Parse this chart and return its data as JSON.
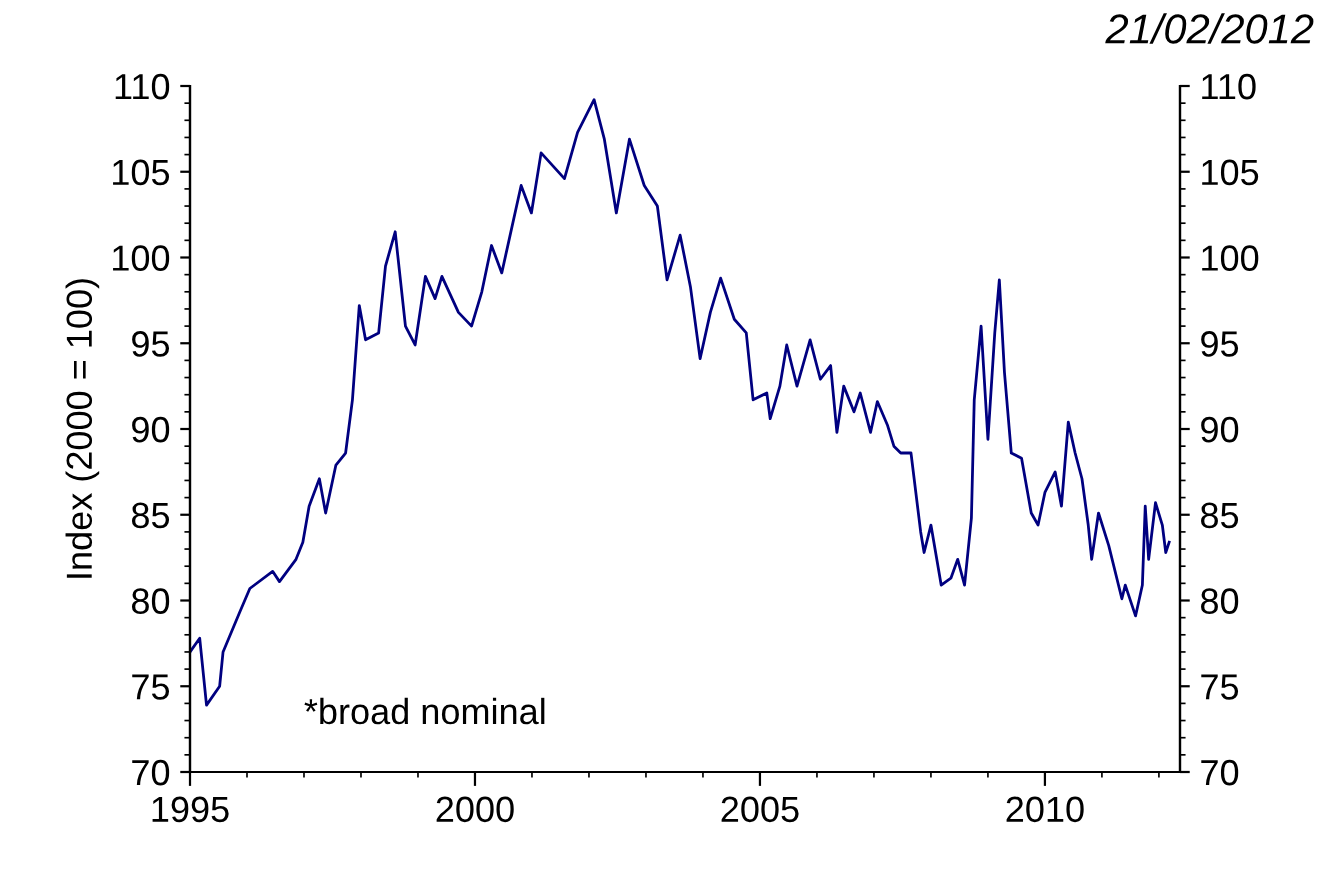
{
  "chart_data": {
    "type": "line",
    "subtitle": "21/02/2012",
    "ylabel": "Index (2000 = 100)",
    "annotations": [
      "*broad nominal"
    ],
    "xlim": [
      1995,
      2012.37
    ],
    "xticks": [
      1995,
      2000,
      2005,
      2010
    ],
    "ylim": [
      70,
      110
    ],
    "yticks": [
      70,
      75,
      80,
      85,
      90,
      95,
      100,
      105,
      110
    ],
    "y2lim": [
      70,
      110
    ],
    "y2ticks": [
      70,
      75,
      80,
      85,
      90,
      95,
      100,
      105,
      110
    ],
    "grid": false,
    "legend": false,
    "series": [
      {
        "color": "#000080",
        "x": [
          1995.0,
          1995.17,
          1995.29,
          1995.52,
          1995.58,
          1995.87,
          1996.05,
          1996.45,
          1996.57,
          1996.86,
          1996.98,
          1997.09,
          1997.27,
          1997.38,
          1997.56,
          1997.73,
          1997.85,
          1997.97,
          1998.08,
          1998.31,
          1998.43,
          1998.6,
          1998.78,
          1998.95,
          1999.13,
          1999.3,
          1999.42,
          1999.71,
          1999.94,
          2000.12,
          2000.29,
          2000.47,
          2000.81,
          2000.99,
          2001.16,
          2001.57,
          2001.8,
          2002.09,
          2002.27,
          2002.48,
          2002.71,
          2002.97,
          2003.2,
          2003.37,
          2003.6,
          2003.78,
          2003.95,
          2004.13,
          2004.31,
          2004.55,
          2004.76,
          2004.88,
          2005.12,
          2005.18,
          2005.35,
          2005.47,
          2005.65,
          2005.88,
          2006.06,
          2006.24,
          2006.35,
          2006.47,
          2006.65,
          2006.76,
          2006.94,
          2007.06,
          2007.24,
          2007.35,
          2007.47,
          2007.65,
          2007.82,
          2007.88,
          2008.0,
          2008.18,
          2008.35,
          2008.47,
          2008.59,
          2008.71,
          2008.76,
          2008.88,
          2009.0,
          2009.12,
          2009.2,
          2009.29,
          2009.41,
          2009.59,
          2009.76,
          2009.88,
          2010.0,
          2010.18,
          2010.29,
          2010.41,
          2010.53,
          2010.65,
          2010.76,
          2010.82,
          2010.94,
          2011.12,
          2011.35,
          2011.41,
          2011.59,
          2011.71,
          2011.76,
          2011.82,
          2011.94,
          2012.06,
          2012.12,
          2012.18
        ],
        "values": [
          77.0,
          77.8,
          73.9,
          75.0,
          77.0,
          79.3,
          80.7,
          81.7,
          81.1,
          82.4,
          83.4,
          85.5,
          87.1,
          85.1,
          87.9,
          88.6,
          91.7,
          97.2,
          95.2,
          95.6,
          99.5,
          101.5,
          96.0,
          94.9,
          98.9,
          97.6,
          98.9,
          96.8,
          96.0,
          98.0,
          100.7,
          99.1,
          104.2,
          102.6,
          106.1,
          104.6,
          107.3,
          109.2,
          106.9,
          102.6,
          106.9,
          104.2,
          103.0,
          98.7,
          101.3,
          98.3,
          94.1,
          96.8,
          98.8,
          96.4,
          95.6,
          91.7,
          92.1,
          90.6,
          92.5,
          94.9,
          92.5,
          95.2,
          92.9,
          93.7,
          89.8,
          92.5,
          91.0,
          92.1,
          89.8,
          91.6,
          90.2,
          89.0,
          88.6,
          88.6,
          84.0,
          82.8,
          84.4,
          80.9,
          81.3,
          82.4,
          80.9,
          84.8,
          91.7,
          96.0,
          89.4,
          95.6,
          98.7,
          93.3,
          88.6,
          88.3,
          85.1,
          84.4,
          86.3,
          87.5,
          85.5,
          90.4,
          88.6,
          87.1,
          84.4,
          82.4,
          85.1,
          83.2,
          80.1,
          80.9,
          79.1,
          80.9,
          85.5,
          82.4,
          85.7,
          84.4,
          82.8,
          83.4
        ]
      }
    ]
  }
}
